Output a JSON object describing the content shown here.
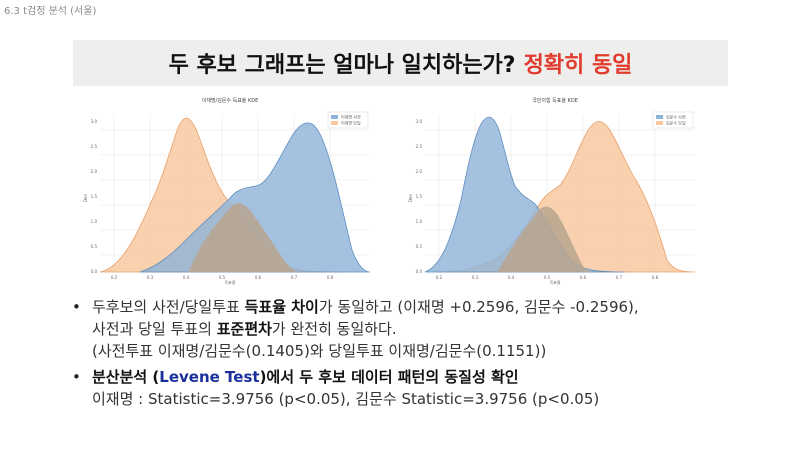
{
  "page_label": "6.3 t검정 분석 (서울)",
  "title": {
    "main": "두 후보 그래프는 얼마나 일치하는가?",
    "accent": "정확히 동일"
  },
  "colors": {
    "blue": "#8db3d8",
    "orange": "#f8c9a0",
    "title_accent": "#e23b2e",
    "emph_blue": "#1a2f9c"
  },
  "charts": [
    {
      "title": "이재명/김문수 득표율 KDE",
      "legend": [
        "이재명 사전",
        "이재명 당일"
      ],
      "x_ticks": [
        "0.2",
        "0.3",
        "0.4",
        "0.5",
        "0.6",
        "0.7",
        "0.8"
      ],
      "y_ticks": [
        "0.0",
        "0.5",
        "1.0",
        "1.5",
        "2.0",
        "2.5",
        "3.0"
      ],
      "y_label": "Den",
      "x_label": "득표율"
    },
    {
      "title": "국민의힘 득표율 KDE",
      "legend": [
        "김문수 사전",
        "김문수 당일"
      ],
      "x_ticks": [
        "0.2",
        "0.3",
        "0.4",
        "0.5",
        "0.6",
        "0.7",
        "0.8"
      ],
      "y_ticks": [
        "0.0",
        "0.5",
        "1.0",
        "1.5",
        "2.0",
        "2.5",
        "3.0"
      ],
      "y_label": "Den",
      "x_label": "득표율"
    }
  ],
  "bullets": {
    "b1_a": "두후보의 사전/당일투표 ",
    "b1_b": "득표율 차이",
    "b1_c": "가 동일하고 (이재명 +0.2596, 김문수 -0.2596),",
    "b1_line2_a": "사전과 당일 투표의 ",
    "b1_line2_b": "표준편차",
    "b1_line2_c": "가 완전히 동일하다.",
    "b1_line3": "(사전투표 이재명/김문수(0.1405)와 당일투표 이재명/김문수(0.1151))",
    "b2_a": "분산분석 (",
    "b2_b": "Levene Test",
    "b2_c": ")에서 두 후보 ",
    "b2_d": "데이터 패턴의 동질성 확인",
    "b2_line2": "이재명 : Statistic=3.9756 (p<0.05),  김문수 Statistic=3.9756 (p<0.05)",
    "dot": "•"
  }
}
